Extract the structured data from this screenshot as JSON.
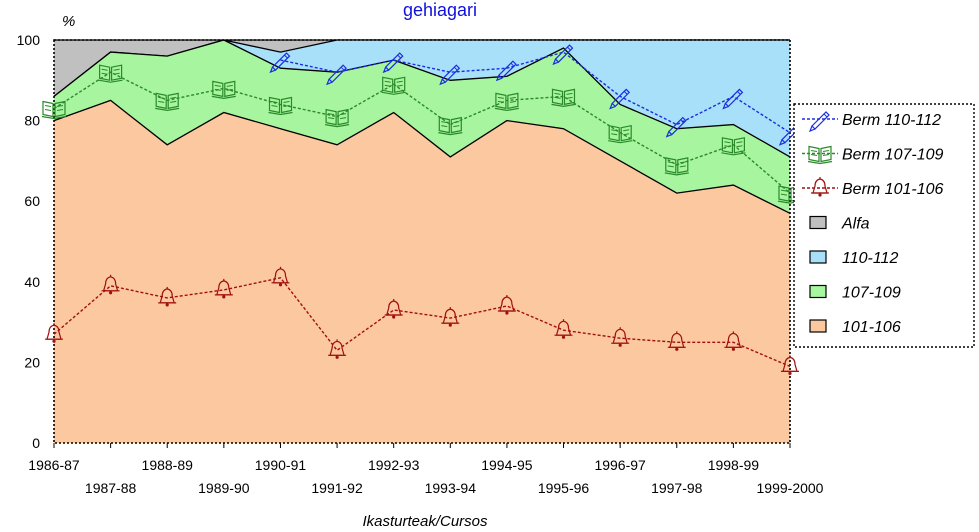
{
  "chart_data": {
    "type": "area",
    "title": "gehiagari",
    "ylabel": "%",
    "xlabel": "Ikasturteak/Cursos",
    "ylim": [
      0,
      100
    ],
    "yticks": [
      0,
      20,
      40,
      60,
      80,
      100
    ],
    "categories": [
      "1986-87",
      "1987-88",
      "1988-89",
      "1989-90",
      "1990-91",
      "1991-92",
      "1992-93",
      "1993-94",
      "1994-95",
      "1995-96",
      "1996-97",
      "1997-98",
      "1998-99",
      "1999-2000"
    ],
    "areas": [
      {
        "name": "101-106",
        "color": "#fcc8a0",
        "values": [
          80,
          85,
          74,
          82,
          78,
          74,
          82,
          71,
          80,
          78,
          70,
          62,
          64,
          57
        ]
      },
      {
        "name": "107-109",
        "color": "#a8f5a0",
        "values": [
          86,
          97,
          96,
          100,
          93,
          92,
          95,
          90,
          91,
          98,
          84,
          78,
          79,
          71
        ]
      },
      {
        "name": "110-112",
        "color": "#a8e0fa",
        "values": [
          86,
          97,
          96,
          100,
          97,
          100,
          100,
          100,
          100,
          100,
          100,
          100,
          100,
          100
        ]
      },
      {
        "name": "Alfa",
        "color": "#c0c0c0",
        "values": [
          100,
          100,
          100,
          100,
          100,
          100,
          100,
          100,
          100,
          100,
          100,
          100,
          100,
          100
        ]
      }
    ],
    "lines": [
      {
        "name": "Berm 110-112",
        "color": "#1a2ee0",
        "icon": "pencil-icon",
        "values": [
          null,
          null,
          null,
          null,
          95,
          92,
          95,
          92,
          93,
          97,
          86,
          79,
          86,
          77
        ]
      },
      {
        "name": "Berm 107-109",
        "color": "#2a8a2a",
        "icon": "book-icon",
        "values": [
          83,
          92,
          85,
          88,
          84,
          81,
          89,
          79,
          85,
          86,
          77,
          69,
          74,
          62
        ]
      },
      {
        "name": "Berm 101-106",
        "color": "#a01010",
        "icon": "bell-icon",
        "values": [
          27,
          39,
          36,
          38,
          41,
          23,
          33,
          31,
          34,
          28,
          26,
          25,
          25,
          19
        ]
      }
    ],
    "legend": {
      "placement": "right",
      "entries": [
        "Berm 110-112",
        "Berm 107-109",
        "Berm 101-106",
        "Alfa",
        "110-112",
        "107-109",
        "101-106"
      ]
    },
    "grid": false
  }
}
